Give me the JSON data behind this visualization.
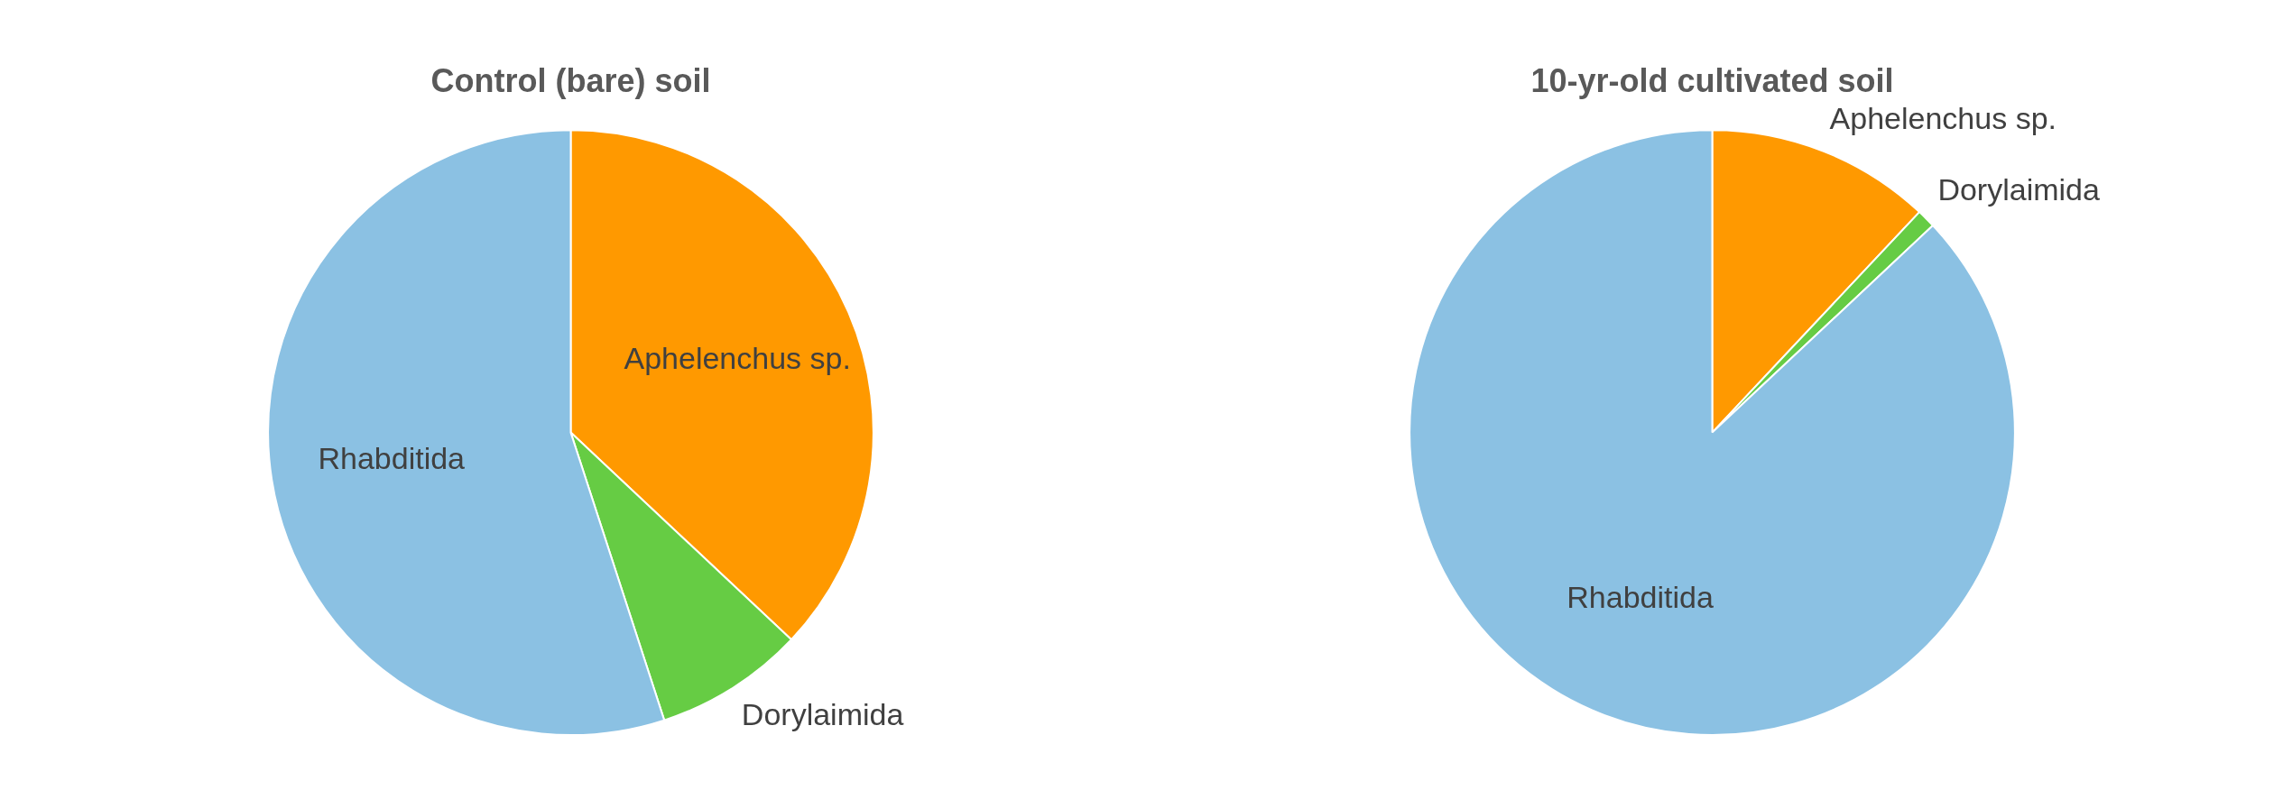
{
  "chart_data": [
    {
      "type": "pie",
      "title": "Control (bare) soil",
      "categories": [
        "Aphelenchus sp.",
        "Dorylaimida",
        "Rhabditida"
      ],
      "values": [
        37,
        8,
        55
      ],
      "colors": [
        "#ff9900",
        "#66cc44",
        "#8bc1e3"
      ],
      "legend": false
    },
    {
      "type": "pie",
      "title": "10-yr-old cultivated soil",
      "categories": [
        "Aphelenchus sp.",
        "Dorylaimida",
        "Rhabditida"
      ],
      "values": [
        12,
        1,
        87
      ],
      "colors": [
        "#ff9900",
        "#66cc44",
        "#8bc1e3"
      ],
      "legend": false
    }
  ]
}
